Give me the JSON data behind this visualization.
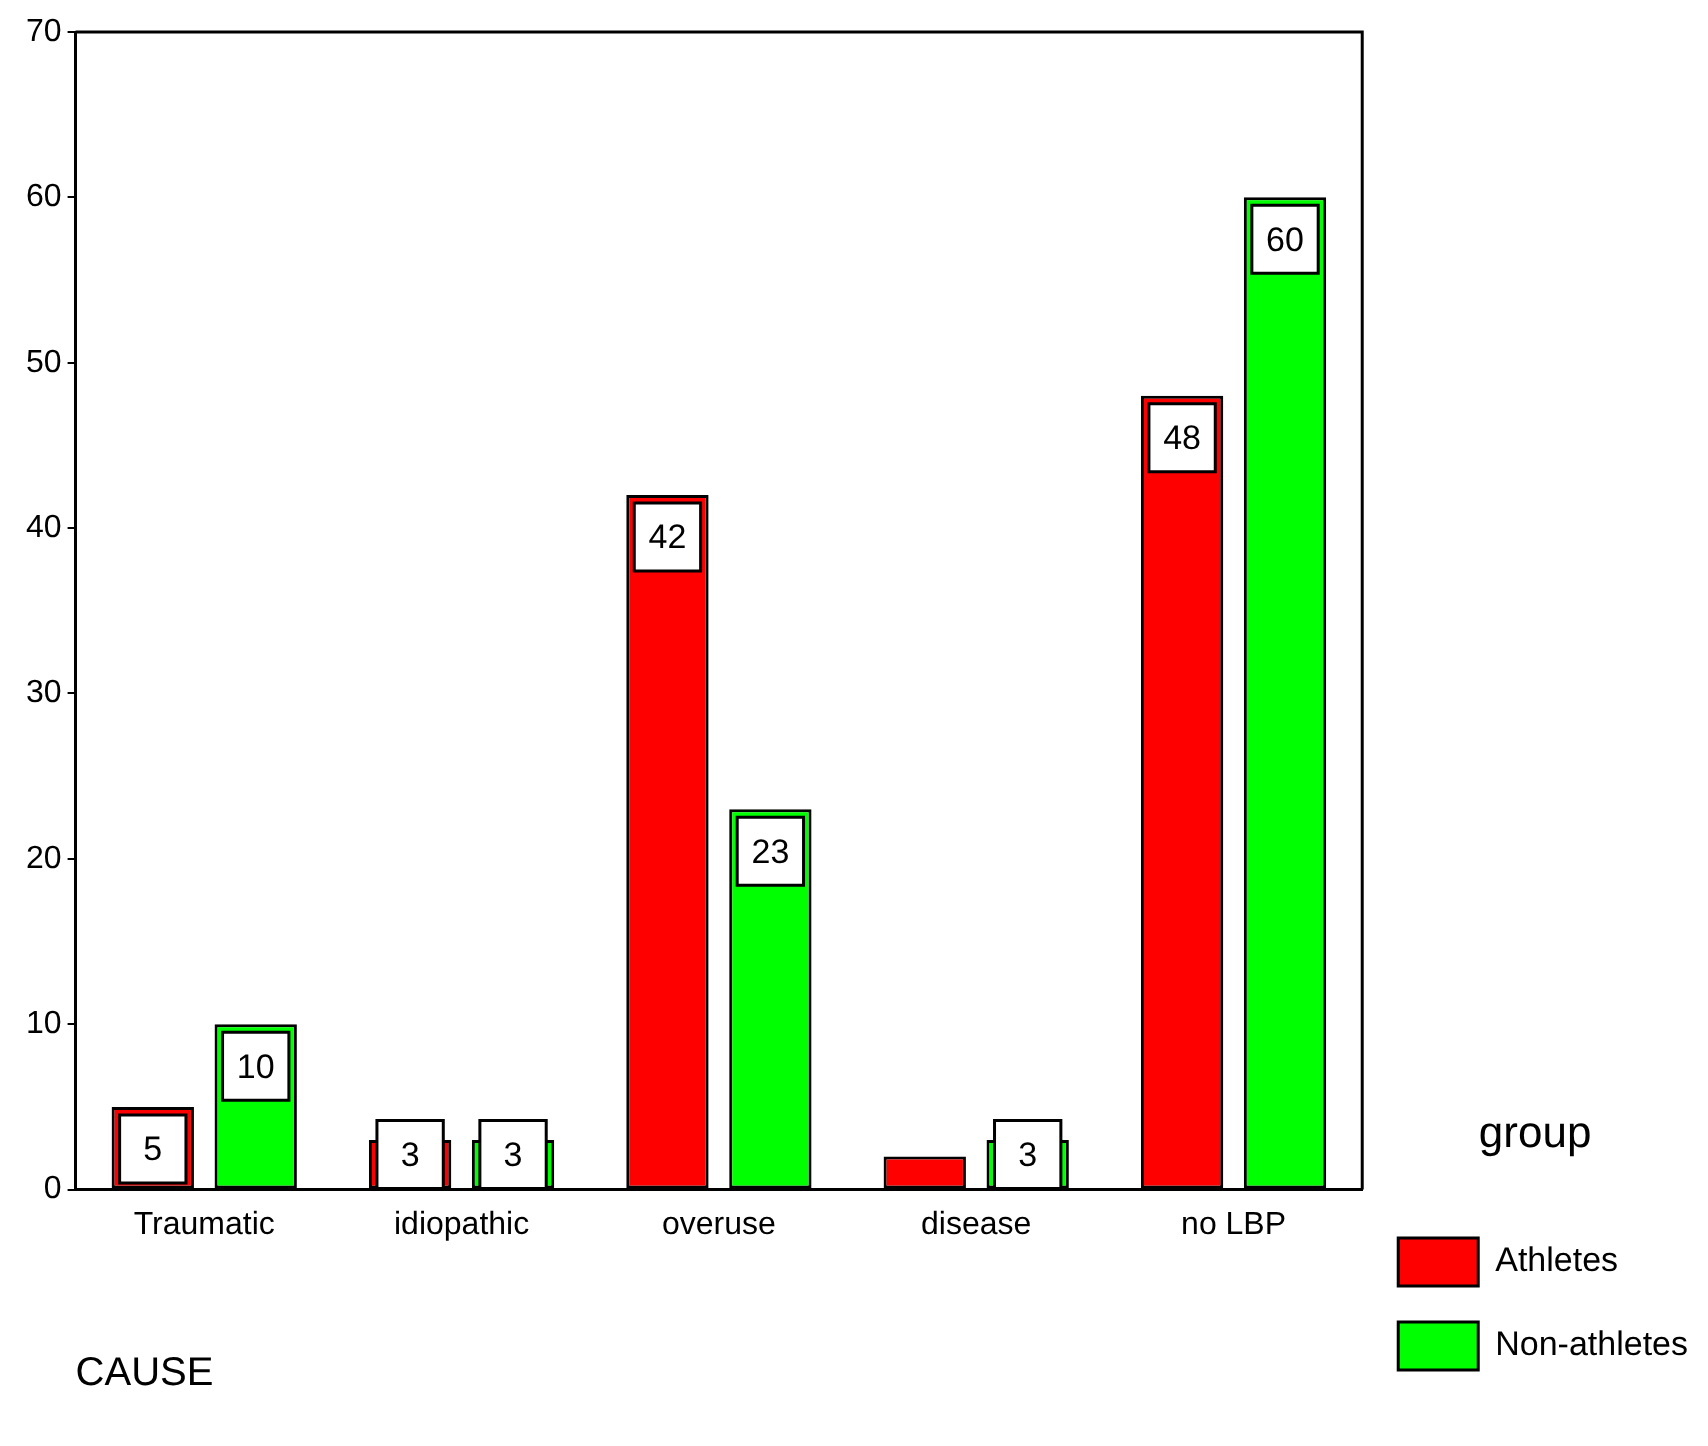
{
  "chart_data": {
    "type": "bar",
    "xlabel": "CAUSE",
    "legend_title": "group",
    "categories": [
      "Traumatic",
      "idiopathic",
      "overuse",
      "disease",
      "no LBP"
    ],
    "series": [
      {
        "name": "Athletes",
        "color": "#ff0000",
        "values": [
          5,
          3,
          42,
          2,
          48
        ],
        "value_labels": [
          "5",
          "3",
          "42",
          null,
          "48"
        ]
      },
      {
        "name": "Non-athletes",
        "color": "#00ff00",
        "values": [
          10,
          3,
          23,
          3,
          60
        ],
        "value_labels": [
          "10",
          "3",
          "23",
          "3",
          "60"
        ]
      }
    ],
    "ylim": [
      0,
      70
    ],
    "yticks": [
      0,
      10,
      20,
      30,
      40,
      50,
      60,
      70
    ],
    "grid": false,
    "legend": "bottom right"
  }
}
